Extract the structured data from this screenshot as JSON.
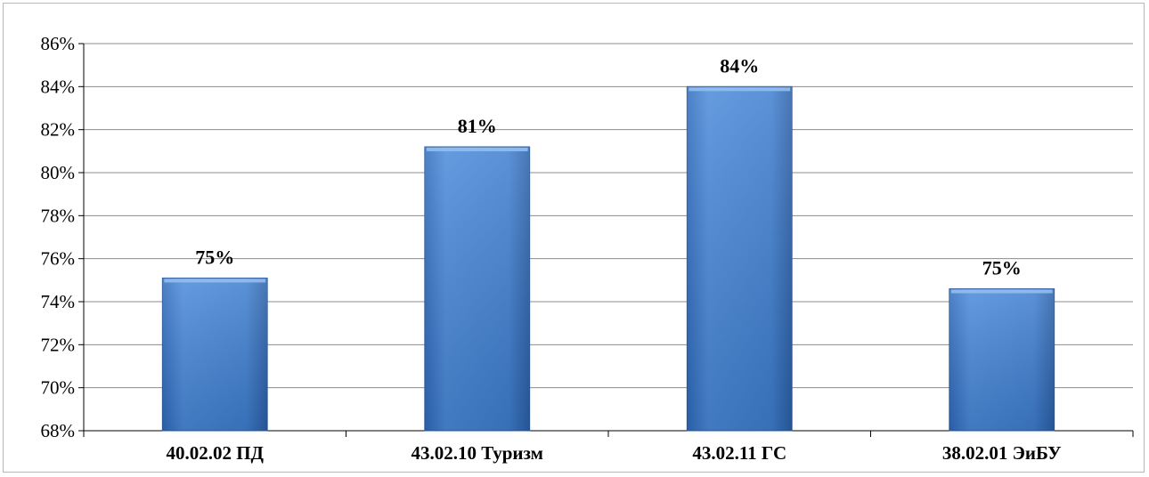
{
  "chart_data": {
    "type": "bar",
    "categories": [
      "40.02.02 ПД",
      "43.02.10 Туризм",
      "43.02.11 ГС",
      "38.02.01 ЭиБУ"
    ],
    "values": [
      75.1,
      81.2,
      84.0,
      74.6
    ],
    "data_labels": [
      "75%",
      "81%",
      "84%",
      "75%"
    ],
    "ylim": [
      68,
      86
    ],
    "yticks": [
      68,
      70,
      72,
      74,
      76,
      78,
      80,
      82,
      84,
      86
    ],
    "ytick_labels": [
      "68%",
      "70%",
      "72%",
      "74%",
      "76%",
      "78%",
      "80%",
      "82%",
      "84%",
      "86%"
    ],
    "grid": true,
    "legend": "none",
    "colors": {
      "bar_top": "#5b9be6",
      "bar_mid": "#3f7fd0",
      "bar_bottom": "#2a62b0",
      "grid": "#8c8c8c"
    }
  }
}
